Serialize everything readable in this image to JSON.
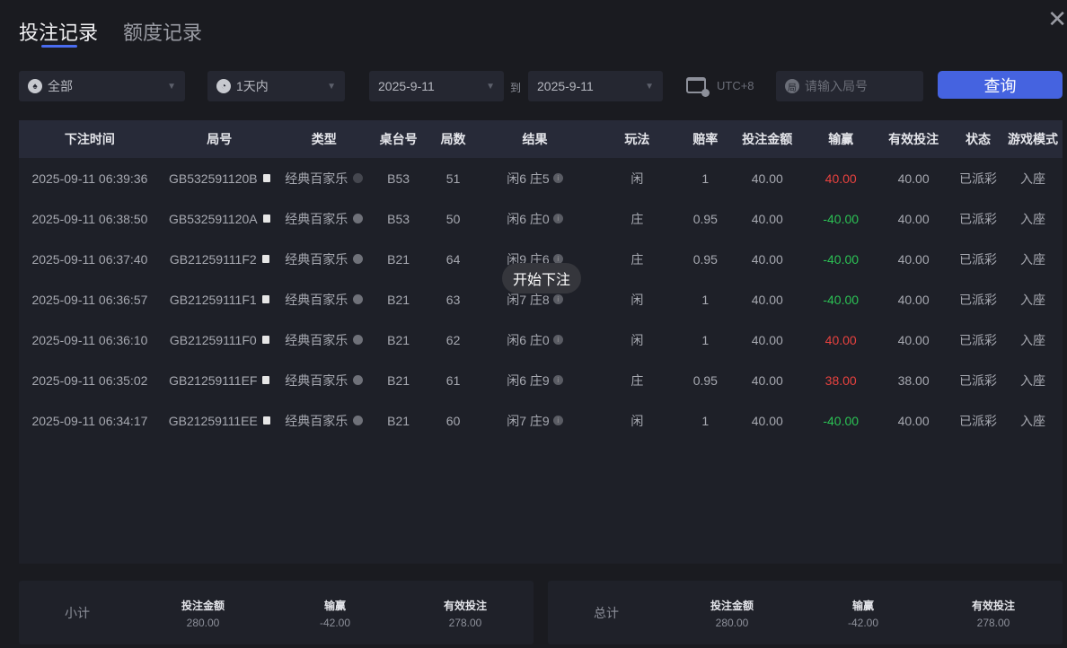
{
  "tabs": [
    {
      "label": "投注记录",
      "active": true
    },
    {
      "label": "额度记录",
      "active": false
    }
  ],
  "close_icon": "close-icon",
  "filters": {
    "game": {
      "icon": "spade-icon",
      "value": "全部"
    },
    "period": {
      "icon": "clock-icon",
      "value": "1天内"
    },
    "date_from": "2025-9-11",
    "to_label": "到",
    "date_to": "2025-9-11",
    "timezone": "UTC+8",
    "round_placeholder": "请输入局号",
    "query_label": "查询"
  },
  "colors": {
    "accent": "#4563e0",
    "win": "#e8423f",
    "loss": "#2bc154"
  },
  "table": {
    "headers": [
      "下注时间",
      "局号",
      "类型",
      "桌台号",
      "局数",
      "结果",
      "玩法",
      "赔率",
      "投注金额",
      "输赢",
      "有效投注",
      "状态",
      "游戏模式"
    ],
    "rows": [
      {
        "time": "2025-09-11 06:39:36",
        "round": "GB532591120B",
        "type": "经典百家乐",
        "table": "B53",
        "num": "51",
        "result": "闲6 庄5",
        "play": "闲",
        "odds": "1",
        "amount": "40.00",
        "winloss": "40.00",
        "wl": "win",
        "valid": "40.00",
        "status": "已派彩",
        "mode": "入座"
      },
      {
        "time": "2025-09-11 06:38:50",
        "round": "GB532591120A",
        "type": "经典百家乐",
        "table": "B53",
        "num": "50",
        "result": "闲6 庄0",
        "play": "庄",
        "odds": "0.95",
        "amount": "40.00",
        "winloss": "-40.00",
        "wl": "loss",
        "valid": "40.00",
        "status": "已派彩",
        "mode": "入座"
      },
      {
        "time": "2025-09-11 06:37:40",
        "round": "GB21259111F2",
        "type": "经典百家乐",
        "table": "B21",
        "num": "64",
        "result": "闲9 庄6",
        "play": "庄",
        "odds": "0.95",
        "amount": "40.00",
        "winloss": "-40.00",
        "wl": "loss",
        "valid": "40.00",
        "status": "已派彩",
        "mode": "入座"
      },
      {
        "time": "2025-09-11 06:36:57",
        "round": "GB21259111F1",
        "type": "经典百家乐",
        "table": "B21",
        "num": "63",
        "result": "闲7 庄8",
        "play": "闲",
        "odds": "1",
        "amount": "40.00",
        "winloss": "-40.00",
        "wl": "loss",
        "valid": "40.00",
        "status": "已派彩",
        "mode": "入座"
      },
      {
        "time": "2025-09-11 06:36:10",
        "round": "GB21259111F0",
        "type": "经典百家乐",
        "table": "B21",
        "num": "62",
        "result": "闲6 庄0",
        "play": "闲",
        "odds": "1",
        "amount": "40.00",
        "winloss": "40.00",
        "wl": "win",
        "valid": "40.00",
        "status": "已派彩",
        "mode": "入座"
      },
      {
        "time": "2025-09-11 06:35:02",
        "round": "GB21259111EF",
        "type": "经典百家乐",
        "table": "B21",
        "num": "61",
        "result": "闲6 庄9",
        "play": "庄",
        "odds": "0.95",
        "amount": "40.00",
        "winloss": "38.00",
        "wl": "win",
        "valid": "38.00",
        "status": "已派彩",
        "mode": "入座"
      },
      {
        "time": "2025-09-11 06:34:17",
        "round": "GB21259111EE",
        "type": "经典百家乐",
        "table": "B21",
        "num": "60",
        "result": "闲7 庄9",
        "play": "闲",
        "odds": "1",
        "amount": "40.00",
        "winloss": "-40.00",
        "wl": "loss",
        "valid": "40.00",
        "status": "已派彩",
        "mode": "入座"
      }
    ]
  },
  "toast": "开始下注",
  "subtotal": {
    "label": "小计",
    "cols": [
      {
        "h": "投注金额",
        "v": "280.00"
      },
      {
        "h": "输赢",
        "v": "-42.00"
      },
      {
        "h": "有效投注",
        "v": "278.00"
      }
    ]
  },
  "total": {
    "label": "总计",
    "cols": [
      {
        "h": "投注金额",
        "v": "280.00"
      },
      {
        "h": "输赢",
        "v": "-42.00"
      },
      {
        "h": "有效投注",
        "v": "278.00"
      }
    ]
  }
}
